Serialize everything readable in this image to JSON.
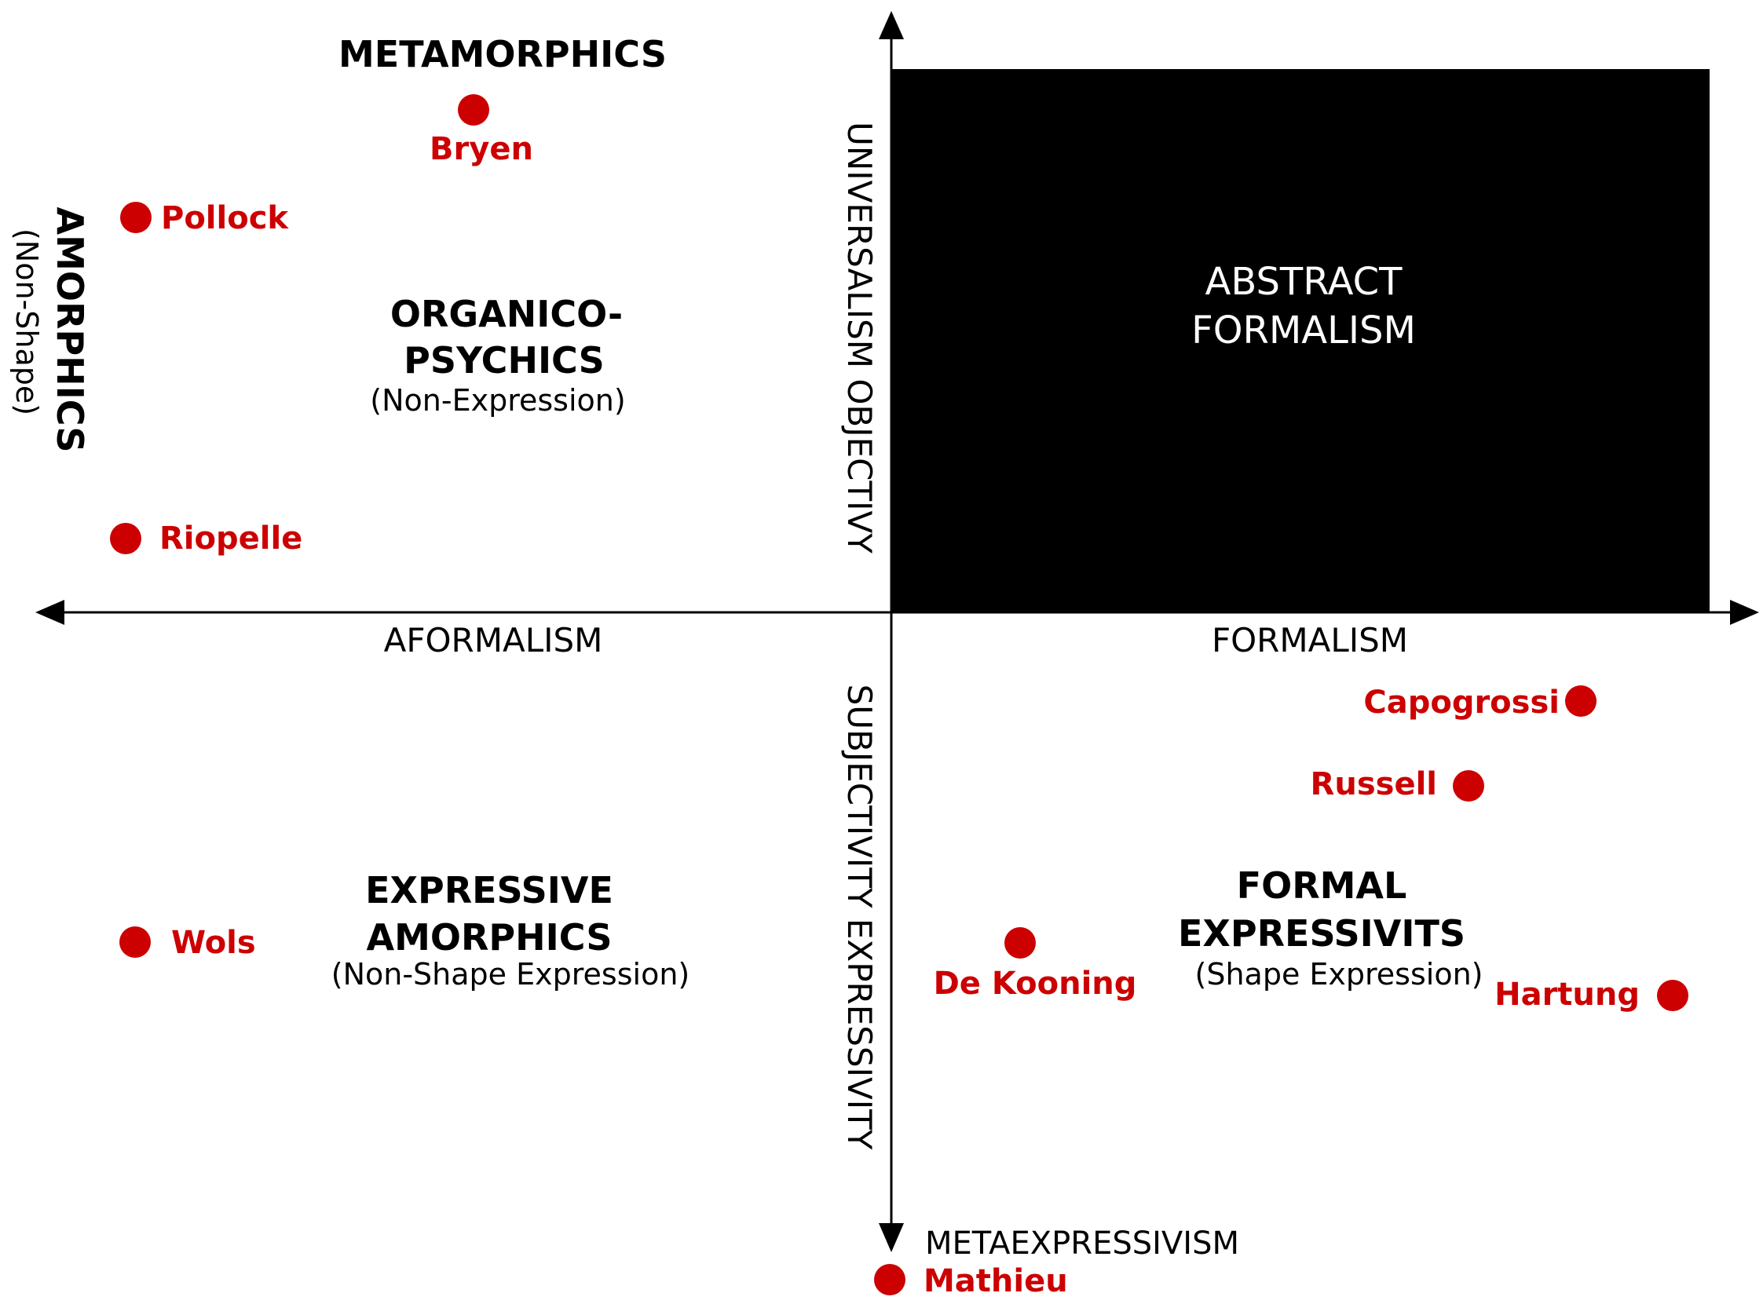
{
  "axes": {
    "left": "AFORMALISM",
    "right": "FORMALISM",
    "up": "UNIVERSALISM OBJECTIVY",
    "down": "SUBJECTIVITY  EXPRESSIVITY",
    "bottom": "METAEXPRESSIVISM"
  },
  "regions": {
    "metamorphics": "METAMORPHICS",
    "amorphics": {
      "title": "AMORPHICS",
      "subtitle": "(Non-Shape)"
    },
    "organico": {
      "line1": "ORGANICO-",
      "line2": "PSYCHICS",
      "subtitle": "(Non-Expression)"
    },
    "abstract": {
      "line1": "ABSTRACT",
      "line2": "FORMALISM"
    },
    "expressive": {
      "line1": "EXPRESSIVE",
      "line2": "AMORPHICS",
      "subtitle": "(Non-Shape Expression)"
    },
    "formal": {
      "line1": "FORMAL",
      "line2": "EXPRESSIVITS",
      "subtitle": "(Shape Expression)"
    }
  },
  "artists": [
    {
      "id": "bryen",
      "name": "Bryen"
    },
    {
      "id": "pollock",
      "name": "Pollock"
    },
    {
      "id": "riopelle",
      "name": "Riopelle"
    },
    {
      "id": "wols",
      "name": "Wols"
    },
    {
      "id": "capogrossi",
      "name": "Capogrossi"
    },
    {
      "id": "russell",
      "name": "Russell"
    },
    {
      "id": "dekooning",
      "name": "De Kooning"
    },
    {
      "id": "hartung",
      "name": "Hartung"
    },
    {
      "id": "mathieu",
      "name": "Mathieu"
    }
  ],
  "colors": {
    "artist": "#cc0000",
    "box": "#000000",
    "axis": "#000000"
  }
}
